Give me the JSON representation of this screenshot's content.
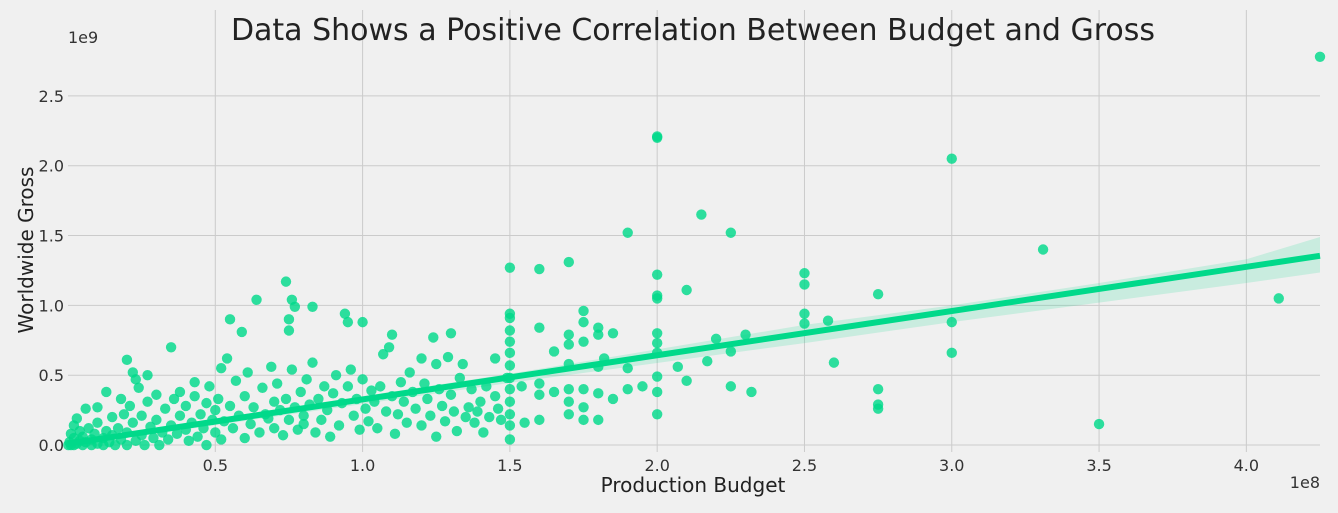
{
  "chart_data": {
    "type": "scatter",
    "title": "Data Shows a Positive Correlation Between Budget and Gross",
    "xlabel": "Production Budget",
    "ylabel": "Worldwide Gross",
    "x_offset_label": "1e8",
    "y_offset_label": "1e9",
    "xlim": [
      0,
      4.25
    ],
    "ylim": [
      -0.05,
      2.8
    ],
    "x_ticks": [
      0.5,
      1.0,
      1.5,
      2.0,
      2.5,
      3.0,
      3.5,
      4.0
    ],
    "x_tick_labels": [
      "0.5",
      "1.0",
      "1.5",
      "2.0",
      "2.5",
      "3.0",
      "3.5",
      "4.0"
    ],
    "y_ticks": [
      0.0,
      0.5,
      1.0,
      1.5,
      2.0,
      2.5
    ],
    "y_tick_labels": [
      "0.0",
      "0.5",
      "1.0",
      "1.5",
      "2.0",
      "2.5"
    ],
    "grid": true,
    "point_color": "#00d98a",
    "line_color": "#00d98a",
    "band_color": "#00d98a",
    "regression": {
      "x": [
        0,
        4.25
      ],
      "y": [
        0.01,
        1.355
      ]
    },
    "confidence_band": {
      "x": [
        0,
        1.5,
        2.5,
        3.0,
        3.5,
        4.0,
        4.25
      ],
      "lower": [
        -0.01,
        0.445,
        0.73,
        0.88,
        1.02,
        1.16,
        1.235
      ],
      "upper": [
        0.03,
        0.51,
        0.86,
        1.0,
        1.16,
        1.33,
        1.49
      ]
    },
    "points": [
      [
        0.001,
        0.0
      ],
      [
        0.005,
        0.02
      ],
      [
        0.01,
        0.08
      ],
      [
        0.01,
        0.0
      ],
      [
        0.02,
        0.05
      ],
      [
        0.02,
        0.14
      ],
      [
        0.02,
        0.0
      ],
      [
        0.03,
        0.01
      ],
      [
        0.03,
        0.19
      ],
      [
        0.04,
        0.03
      ],
      [
        0.04,
        0.1
      ],
      [
        0.05,
        0.0
      ],
      [
        0.05,
        0.06
      ],
      [
        0.06,
        0.26
      ],
      [
        0.06,
        0.02
      ],
      [
        0.07,
        0.12
      ],
      [
        0.08,
        0.0
      ],
      [
        0.08,
        0.04
      ],
      [
        0.09,
        0.08
      ],
      [
        0.1,
        0.01
      ],
      [
        0.1,
        0.27
      ],
      [
        0.1,
        0.16
      ],
      [
        0.12,
        0.0
      ],
      [
        0.12,
        0.05
      ],
      [
        0.13,
        0.38
      ],
      [
        0.13,
        0.1
      ],
      [
        0.14,
        0.02
      ],
      [
        0.15,
        0.2
      ],
      [
        0.15,
        0.07
      ],
      [
        0.16,
        0.0
      ],
      [
        0.17,
        0.12
      ],
      [
        0.18,
        0.33
      ],
      [
        0.18,
        0.04
      ],
      [
        0.19,
        0.22
      ],
      [
        0.2,
        0.0
      ],
      [
        0.2,
        0.09
      ],
      [
        0.21,
        0.28
      ],
      [
        0.22,
        0.16
      ],
      [
        0.23,
        0.03
      ],
      [
        0.23,
        0.47
      ],
      [
        0.24,
        0.41
      ],
      [
        0.25,
        0.07
      ],
      [
        0.25,
        0.21
      ],
      [
        0.26,
        0.0
      ],
      [
        0.27,
        0.31
      ],
      [
        0.28,
        0.13
      ],
      [
        0.29,
        0.05
      ],
      [
        0.3,
        0.36
      ],
      [
        0.3,
        0.18
      ],
      [
        0.31,
        0.0
      ],
      [
        0.32,
        0.09
      ],
      [
        0.33,
        0.26
      ],
      [
        0.34,
        0.04
      ],
      [
        0.35,
        0.14
      ],
      [
        0.36,
        0.33
      ],
      [
        0.37,
        0.08
      ],
      [
        0.38,
        0.38
      ],
      [
        0.38,
        0.21
      ],
      [
        0.4,
        0.11
      ],
      [
        0.4,
        0.28
      ],
      [
        0.41,
        0.03
      ],
      [
        0.42,
        0.16
      ],
      [
        0.43,
        0.35
      ],
      [
        0.44,
        0.06
      ],
      [
        0.45,
        0.22
      ],
      [
        0.46,
        0.12
      ],
      [
        0.47,
        0.0
      ],
      [
        0.47,
        0.3
      ],
      [
        0.48,
        0.42
      ],
      [
        0.49,
        0.18
      ],
      [
        0.2,
        0.61
      ],
      [
        0.22,
        0.52
      ],
      [
        0.27,
        0.5
      ],
      [
        0.35,
        0.7
      ],
      [
        0.43,
        0.45
      ],
      [
        0.5,
        0.09
      ],
      [
        0.5,
        0.25
      ],
      [
        0.51,
        0.33
      ],
      [
        0.52,
        0.04
      ],
      [
        0.52,
        0.55
      ],
      [
        0.53,
        0.17
      ],
      [
        0.54,
        0.62
      ],
      [
        0.55,
        0.28
      ],
      [
        0.55,
        0.9
      ],
      [
        0.56,
        0.12
      ],
      [
        0.57,
        0.46
      ],
      [
        0.58,
        0.21
      ],
      [
        0.59,
        0.81
      ],
      [
        0.6,
        0.05
      ],
      [
        0.6,
        0.35
      ],
      [
        0.61,
        0.52
      ],
      [
        0.62,
        0.15
      ],
      [
        0.63,
        0.27
      ],
      [
        0.64,
        1.04
      ],
      [
        0.65,
        0.09
      ],
      [
        0.66,
        0.41
      ],
      [
        0.67,
        0.22
      ],
      [
        0.68,
        0.19
      ],
      [
        0.69,
        0.56
      ],
      [
        0.7,
        0.31
      ],
      [
        0.7,
        0.12
      ],
      [
        0.71,
        0.44
      ],
      [
        0.72,
        0.25
      ],
      [
        0.73,
        0.07
      ],
      [
        0.74,
        0.33
      ],
      [
        0.74,
        1.17
      ],
      [
        0.75,
        0.18
      ],
      [
        0.75,
        0.82
      ],
      [
        0.75,
        0.9
      ],
      [
        0.76,
        1.04
      ],
      [
        0.76,
        0.54
      ],
      [
        0.77,
        0.27
      ],
      [
        0.77,
        0.99
      ],
      [
        0.78,
        0.11
      ],
      [
        0.79,
        0.38
      ],
      [
        0.8,
        0.21
      ],
      [
        0.8,
        0.15
      ],
      [
        0.81,
        0.47
      ],
      [
        0.82,
        0.29
      ],
      [
        0.83,
        0.99
      ],
      [
        0.83,
        0.59
      ],
      [
        0.84,
        0.09
      ],
      [
        0.85,
        0.33
      ],
      [
        0.86,
        0.18
      ],
      [
        0.87,
        0.42
      ],
      [
        0.88,
        0.25
      ],
      [
        0.89,
        0.06
      ],
      [
        0.9,
        0.37
      ],
      [
        0.91,
        0.5
      ],
      [
        0.92,
        0.14
      ],
      [
        0.93,
        0.3
      ],
      [
        0.94,
        0.94
      ],
      [
        0.95,
        0.42
      ],
      [
        0.95,
        0.88
      ],
      [
        0.96,
        0.54
      ],
      [
        0.97,
        0.21
      ],
      [
        0.98,
        0.33
      ],
      [
        0.99,
        0.11
      ],
      [
        1.0,
        0.47
      ],
      [
        1.0,
        0.88
      ],
      [
        1.01,
        0.26
      ],
      [
        1.02,
        0.17
      ],
      [
        1.03,
        0.39
      ],
      [
        1.04,
        0.31
      ],
      [
        1.05,
        0.12
      ],
      [
        1.06,
        0.42
      ],
      [
        1.07,
        0.65
      ],
      [
        1.08,
        0.24
      ],
      [
        1.09,
        0.7
      ],
      [
        1.1,
        0.79
      ],
      [
        1.1,
        0.35
      ],
      [
        1.11,
        0.08
      ],
      [
        1.12,
        0.22
      ],
      [
        1.13,
        0.45
      ],
      [
        1.14,
        0.31
      ],
      [
        1.15,
        0.16
      ],
      [
        1.16,
        0.52
      ],
      [
        1.17,
        0.38
      ],
      [
        1.18,
        0.26
      ],
      [
        1.2,
        0.62
      ],
      [
        1.2,
        0.14
      ],
      [
        1.21,
        0.44
      ],
      [
        1.22,
        0.33
      ],
      [
        1.23,
        0.21
      ],
      [
        1.24,
        0.77
      ],
      [
        1.25,
        0.58
      ],
      [
        1.25,
        0.06
      ],
      [
        1.26,
        0.4
      ],
      [
        1.27,
        0.28
      ],
      [
        1.28,
        0.17
      ],
      [
        1.29,
        0.63
      ],
      [
        1.3,
        0.8
      ],
      [
        1.3,
        0.36
      ],
      [
        1.31,
        0.24
      ],
      [
        1.32,
        0.1
      ],
      [
        1.33,
        0.48
      ],
      [
        1.34,
        0.58
      ],
      [
        1.35,
        0.2
      ],
      [
        1.36,
        0.27
      ],
      [
        1.37,
        0.4
      ],
      [
        1.38,
        0.16
      ],
      [
        1.39,
        0.24
      ],
      [
        1.4,
        0.31
      ],
      [
        1.41,
        0.09
      ],
      [
        1.42,
        0.42
      ],
      [
        1.43,
        0.2
      ],
      [
        1.45,
        0.62
      ],
      [
        1.45,
        0.35
      ],
      [
        1.46,
        0.26
      ],
      [
        1.47,
        0.18
      ],
      [
        1.49,
        0.48
      ],
      [
        1.5,
        1.27
      ],
      [
        1.5,
        0.94
      ],
      [
        1.5,
        0.91
      ],
      [
        1.5,
        0.82
      ],
      [
        1.5,
        0.74
      ],
      [
        1.5,
        0.66
      ],
      [
        1.5,
        0.57
      ],
      [
        1.5,
        0.48
      ],
      [
        1.5,
        0.4
      ],
      [
        1.5,
        0.31
      ],
      [
        1.5,
        0.22
      ],
      [
        1.5,
        0.14
      ],
      [
        1.5,
        0.04
      ],
      [
        1.54,
        0.42
      ],
      [
        1.55,
        0.16
      ],
      [
        1.6,
        1.26
      ],
      [
        1.6,
        0.84
      ],
      [
        1.6,
        0.44
      ],
      [
        1.6,
        0.36
      ],
      [
        1.6,
        0.18
      ],
      [
        1.65,
        0.67
      ],
      [
        1.65,
        0.38
      ],
      [
        1.7,
        1.31
      ],
      [
        1.7,
        0.79
      ],
      [
        1.7,
        0.72
      ],
      [
        1.7,
        0.58
      ],
      [
        1.7,
        0.4
      ],
      [
        1.7,
        0.31
      ],
      [
        1.7,
        0.22
      ],
      [
        1.75,
        0.96
      ],
      [
        1.75,
        0.88
      ],
      [
        1.75,
        0.74
      ],
      [
        1.75,
        0.4
      ],
      [
        1.75,
        0.27
      ],
      [
        1.75,
        0.18
      ],
      [
        1.8,
        0.84
      ],
      [
        1.8,
        0.79
      ],
      [
        1.8,
        0.56
      ],
      [
        1.8,
        0.37
      ],
      [
        1.8,
        0.18
      ],
      [
        1.82,
        0.62
      ],
      [
        1.85,
        0.8
      ],
      [
        1.85,
        0.33
      ],
      [
        1.9,
        1.52
      ],
      [
        1.9,
        0.55
      ],
      [
        1.9,
        0.4
      ],
      [
        1.95,
        0.42
      ],
      [
        2.0,
        2.21
      ],
      [
        2.0,
        2.2
      ],
      [
        2.0,
        1.22
      ],
      [
        2.0,
        1.07
      ],
      [
        2.0,
        1.05
      ],
      [
        2.0,
        0.8
      ],
      [
        2.0,
        0.73
      ],
      [
        2.0,
        0.66
      ],
      [
        2.0,
        0.49
      ],
      [
        2.0,
        0.38
      ],
      [
        2.0,
        0.22
      ],
      [
        2.07,
        0.56
      ],
      [
        2.1,
        1.11
      ],
      [
        2.1,
        0.46
      ],
      [
        2.15,
        1.65
      ],
      [
        2.17,
        0.6
      ],
      [
        2.2,
        0.76
      ],
      [
        2.25,
        1.52
      ],
      [
        2.25,
        0.67
      ],
      [
        2.25,
        0.42
      ],
      [
        2.3,
        0.79
      ],
      [
        2.32,
        0.38
      ],
      [
        2.5,
        1.23
      ],
      [
        2.5,
        1.15
      ],
      [
        2.5,
        0.94
      ],
      [
        2.5,
        0.87
      ],
      [
        2.58,
        0.89
      ],
      [
        2.6,
        0.59
      ],
      [
        2.75,
        1.08
      ],
      [
        2.75,
        0.4
      ],
      [
        2.75,
        0.29
      ],
      [
        2.75,
        0.26
      ],
      [
        3.0,
        2.05
      ],
      [
        3.0,
        0.88
      ],
      [
        3.0,
        0.66
      ],
      [
        3.31,
        1.4
      ],
      [
        3.5,
        0.15
      ],
      [
        4.11,
        1.05
      ],
      [
        4.25,
        2.78
      ]
    ]
  }
}
